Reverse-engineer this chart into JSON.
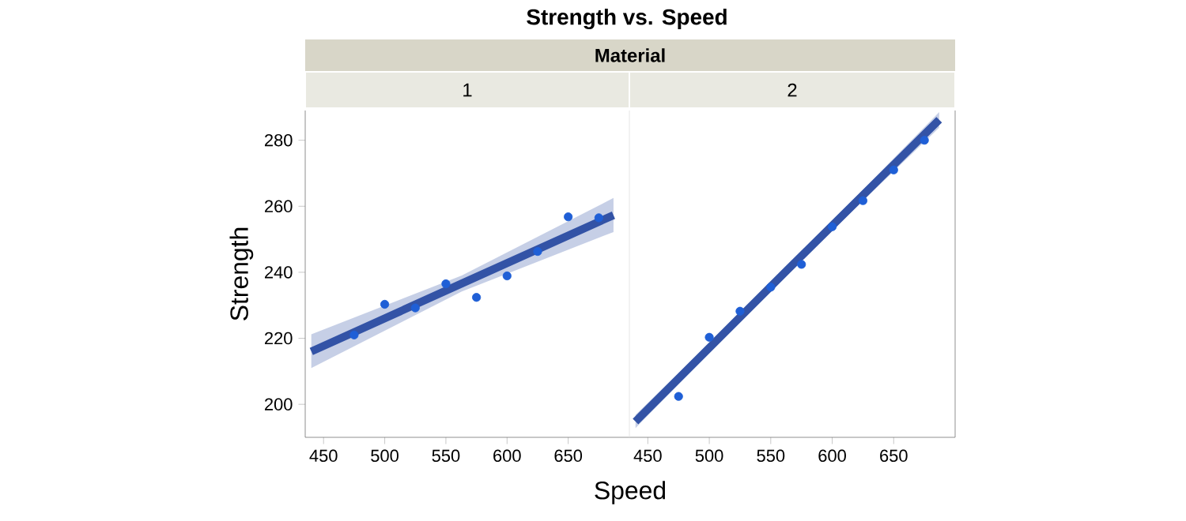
{
  "chart_data": [
    {
      "type": "scatter",
      "annotations": [
        "Strength vs. Speed"
      ],
      "legend_title": "Material",
      "title": "1",
      "xlabel": "Speed",
      "ylabel": "Strength",
      "xlim": [
        435,
        700
      ],
      "ylim": [
        190,
        289
      ],
      "xticks": [
        450,
        500,
        550,
        600,
        650
      ],
      "yticks": [
        200,
        220,
        240,
        260,
        280
      ],
      "grid": false,
      "series": [
        {
          "marker": "circle",
          "color": "#1f5fd6",
          "x": [
            475,
            500,
            525,
            550,
            575,
            600,
            625,
            650,
            675
          ],
          "values": [
            221.0,
            230.3,
            229.2,
            236.5,
            232.4,
            238.9,
            246.3,
            256.8,
            256.5
          ]
        },
        {
          "type": "line",
          "marker": "none",
          "color": "#3353a6",
          "x": [
            440,
            563,
            687
          ],
          "values": [
            216.0,
            236.6,
            257.3
          ],
          "lower": [
            211.0,
            234.2,
            252.2
          ],
          "upper": [
            221.2,
            239.0,
            262.5
          ]
        }
      ]
    },
    {
      "type": "scatter",
      "title": "2",
      "xlim": [
        435,
        700
      ],
      "ylim": [
        190,
        289
      ],
      "xticks": [
        450,
        500,
        550,
        600,
        650
      ],
      "yticks": [
        200,
        220,
        240,
        260,
        280
      ],
      "tick_labels": "x",
      "grid": false,
      "series": [
        {
          "marker": "circle",
          "color": "#1f5fd6",
          "x": [
            475,
            500,
            525,
            550,
            575,
            600,
            625,
            650,
            675
          ],
          "values": [
            202.4,
            220.3,
            228.2,
            235.5,
            242.4,
            253.8,
            261.7,
            271.0,
            280.0
          ]
        },
        {
          "type": "line",
          "marker": "none",
          "color": "#3353a6",
          "x": [
            440,
            563,
            687
          ],
          "values": [
            194.8,
            240.5,
            286.2
          ],
          "lower": [
            192.8,
            239.5,
            283.8
          ],
          "upper": [
            196.8,
            241.5,
            288.5
          ]
        }
      ]
    }
  ]
}
